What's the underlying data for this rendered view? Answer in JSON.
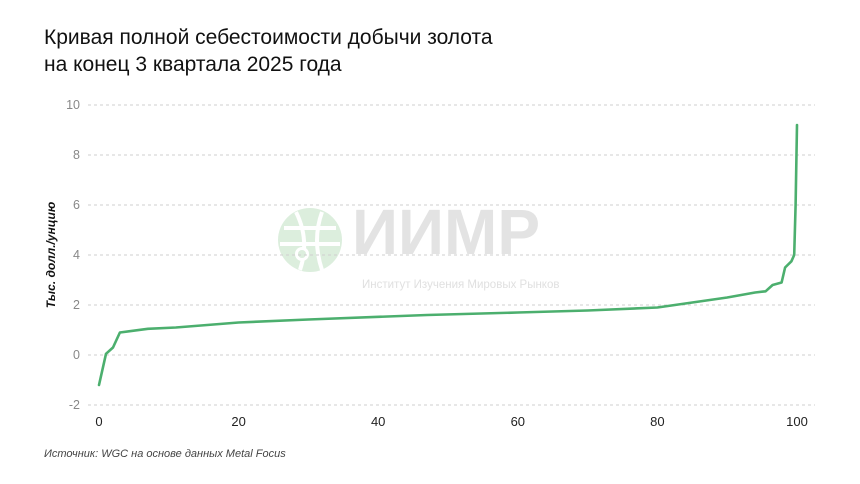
{
  "chart_data": {
    "type": "line",
    "title_lines": [
      "Кривая полной себестоимости добычи золота",
      "на конец 3 квартала 2025 года"
    ],
    "ylabel": "Тыс. долл./унцию",
    "xlabel": "",
    "xlim": [
      0,
      100
    ],
    "ylim": [
      -2,
      10
    ],
    "xticks": [
      0,
      20,
      40,
      60,
      80,
      100
    ],
    "yticks": [
      -2,
      0,
      2,
      4,
      6,
      8,
      10
    ],
    "grid": "horizontal dashed",
    "line_color": "#4caf6e",
    "series": [
      {
        "x": [
          0,
          1,
          2,
          3,
          7,
          11,
          20,
          30,
          47,
          60,
          70,
          80,
          85,
          90,
          94,
          95.5,
          96.5,
          97.8,
          98.3,
          99.2,
          99.6,
          99.8,
          100
        ],
        "y": [
          -1.2,
          0.05,
          0.3,
          0.9,
          1.05,
          1.1,
          1.3,
          1.42,
          1.6,
          1.7,
          1.78,
          1.9,
          2.1,
          2.3,
          2.5,
          2.55,
          2.8,
          2.9,
          3.5,
          3.75,
          4.0,
          6.0,
          9.2
        ]
      }
    ]
  },
  "watermark": {
    "logo_text": "ИИМР",
    "subtitle": "Институт Изучения Мировых Рынков",
    "color": "#d6ecd8"
  },
  "source": "Источник: WGC на основе данных Metal Focus"
}
